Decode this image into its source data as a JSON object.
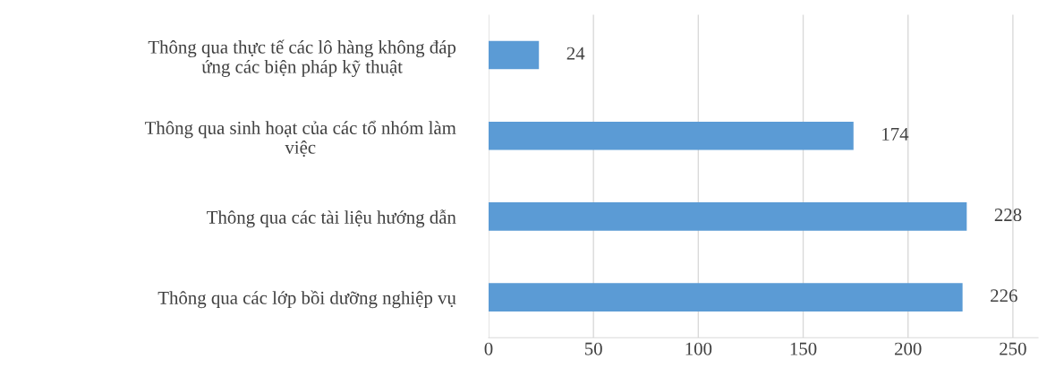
{
  "chart_data": {
    "type": "bar",
    "orientation": "horizontal",
    "categories": [
      "Thông qua thực tế các lô hàng không đáp\nứng các biện pháp kỹ thuật",
      "Thông qua sinh hoạt của các tổ nhóm làm\nviệc",
      "Thông qua các tài liệu hướng dẫn",
      "Thông qua các lớp bồi dưỡng nghiệp vụ"
    ],
    "values": [
      24,
      174,
      228,
      226
    ],
    "color": "#5b9bd5",
    "xlim": [
      0,
      262
    ],
    "xticks": [
      0,
      50,
      100,
      150,
      200,
      250
    ],
    "grid": "x",
    "data_labels": true
  }
}
